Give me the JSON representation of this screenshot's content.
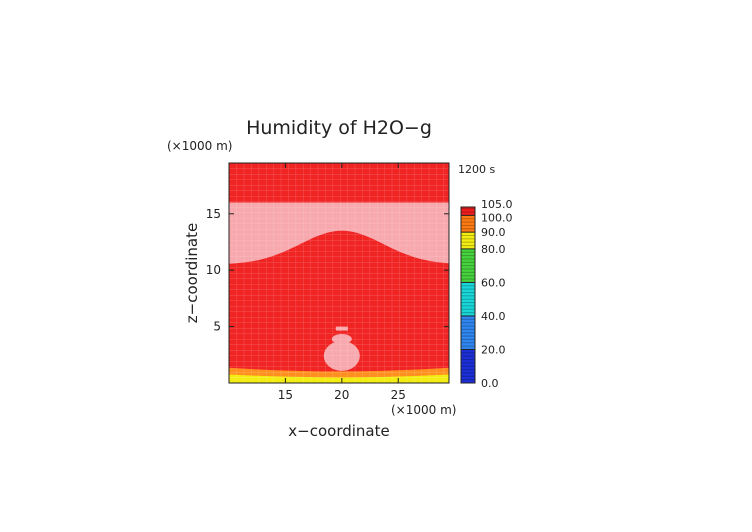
{
  "chart_data": {
    "type": "heatmap",
    "title": "Humidity of H2O−g",
    "time_label": "1200 s",
    "xlabel": "x−coordinate",
    "ylabel": "z−coordinate",
    "x_unit": "(×1000 m)",
    "y_unit": "(×1000 m)",
    "xlim": [
      10,
      29.5
    ],
    "ylim": [
      0,
      19.5
    ],
    "x_ticks": [
      15,
      20,
      25
    ],
    "y_ticks": [
      5,
      10,
      15
    ],
    "colorbar": {
      "labels": [
        "105.0",
        "100.0",
        "90.0",
        "80.0",
        "60.0",
        "40.0",
        "20.0",
        "0.0"
      ],
      "label_values": [
        105,
        100,
        90,
        80,
        60,
        40,
        20,
        0
      ],
      "bands": [
        {
          "from": 0,
          "to": 20,
          "color": "#1c2fd6"
        },
        {
          "from": 20,
          "to": 40,
          "color": "#2f86f0"
        },
        {
          "from": 40,
          "to": 60,
          "color": "#19d6d8"
        },
        {
          "from": 60,
          "to": 80,
          "color": "#46d23c"
        },
        {
          "from": 80,
          "to": 90,
          "color": "#f2ec12"
        },
        {
          "from": 90,
          "to": 100,
          "color": "#ff7a12"
        },
        {
          "from": 100,
          "to": 105,
          "color": "#ee1c1c"
        }
      ]
    },
    "regions": {
      "background": {
        "value": "100+",
        "color": "#f12424"
      },
      "upper_band": {
        "z_range": [
          10.5,
          16
        ],
        "crest_x": 20,
        "crest_z": 13.5,
        "value": "100+",
        "color": "#f7a9ae"
      },
      "blob": {
        "x_center": 20,
        "z_range": [
          1.2,
          5.0
        ],
        "color": "#f7a9ae"
      },
      "bottom_layer": {
        "z_range": [
          0,
          1.5
        ],
        "colors": [
          "#f2ec12",
          "#ff9020"
        ]
      }
    }
  }
}
